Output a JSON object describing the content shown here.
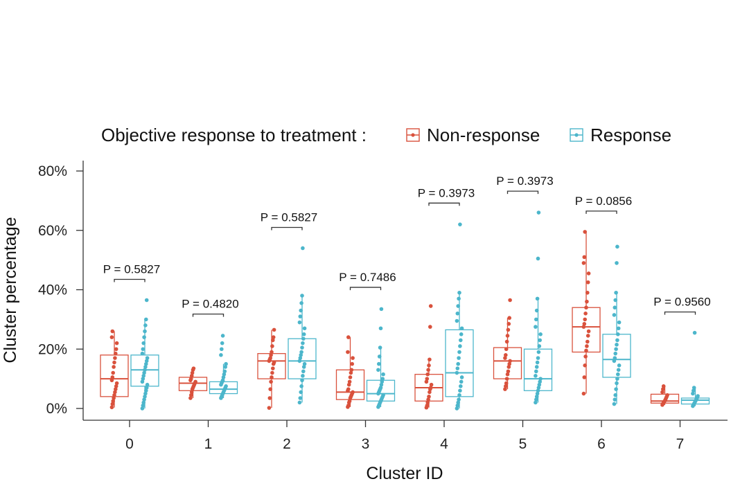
{
  "chart_data": {
    "type": "box",
    "title": "",
    "xlabel": "Cluster ID",
    "ylabel": "Cluster percentage",
    "ylim": [
      -4,
      84
    ],
    "yticks": [
      0,
      20,
      40,
      60,
      80
    ],
    "ytick_labels": [
      "0%",
      "20%",
      "40%",
      "60%",
      "80%"
    ],
    "categories": [
      "0",
      "1",
      "2",
      "3",
      "4",
      "5",
      "6",
      "7"
    ],
    "legend": {
      "title": "Objective response to treatment :",
      "position": "top",
      "entries": [
        {
          "name": "Non-response",
          "color": "#d9513c"
        },
        {
          "name": "Response",
          "color": "#4cb6cb"
        }
      ]
    },
    "series": [
      {
        "name": "Non-response",
        "color": "#d9513c",
        "boxes": [
          {
            "q1": 4.0,
            "median": 10.0,
            "q3": 18.0,
            "whisker_low": 0.3,
            "whisker_high": 26.0,
            "points": [
              0.4,
              1.5,
              2.5,
              3.5,
              4.5,
              5.5,
              6.5,
              7.5,
              8.5,
              9.5,
              10.5,
              12.0,
              14.0,
              15.5,
              17.0,
              18.5,
              20.0,
              22.0,
              24.0,
              26.0
            ]
          },
          {
            "q1": 6.0,
            "median": 8.5,
            "q3": 10.5,
            "whisker_low": 3.5,
            "whisker_high": 13.5,
            "points": [
              3.5,
              4.5,
              5.5,
              6.5,
              7.0,
              7.5,
              8.0,
              8.5,
              9.0,
              9.5,
              10.0,
              11.0,
              12.0,
              13.0,
              13.5
            ]
          },
          {
            "q1": 10.0,
            "median": 16.0,
            "q3": 18.5,
            "whisker_low": 0.2,
            "whisker_high": 26.5,
            "points": [
              0.2,
              3.5,
              6.5,
              9.0,
              10.5,
              12.0,
              13.5,
              15.0,
              15.5,
              16.0,
              16.5,
              17.0,
              18.0,
              19.0,
              21.0,
              23.0,
              24.0,
              26.5
            ]
          },
          {
            "q1": 3.0,
            "median": 5.5,
            "q3": 13.0,
            "whisker_low": 0.5,
            "whisker_high": 24.0,
            "points": [
              0.5,
              1.0,
              2.0,
              2.5,
              3.5,
              4.0,
              4.5,
              5.0,
              5.5,
              6.0,
              6.5,
              8.0,
              9.0,
              10.5,
              12.0,
              13.0,
              15.0,
              17.0,
              19.0,
              24.0
            ]
          },
          {
            "q1": 2.5,
            "median": 7.0,
            "q3": 11.5,
            "whisker_low": 0.3,
            "whisker_high": 16.5,
            "points": [
              0.3,
              1.0,
              2.0,
              3.0,
              4.0,
              5.5,
              6.5,
              7.0,
              8.0,
              9.0,
              10.0,
              11.5,
              13.0,
              14.5,
              16.5,
              27.5,
              34.5
            ]
          },
          {
            "q1": 10.0,
            "median": 16.0,
            "q3": 20.5,
            "whisker_low": 6.5,
            "whisker_high": 30.5,
            "points": [
              6.5,
              7.5,
              8.5,
              10.0,
              11.5,
              12.5,
              14.0,
              15.0,
              16.0,
              17.0,
              18.0,
              20.0,
              22.5,
              24.5,
              26.5,
              28.5,
              30.5,
              36.5
            ]
          },
          {
            "q1": 19.0,
            "median": 27.5,
            "q3": 34.0,
            "whisker_low": 5.0,
            "whisker_high": 59.5,
            "points": [
              5.0,
              10.5,
              14.5,
              17.5,
              19.5,
              21.0,
              22.5,
              24.5,
              26.0,
              27.5,
              28.5,
              30.0,
              32.0,
              34.0,
              36.0,
              39.0,
              42.5,
              45.5,
              49.0,
              51.0,
              59.5
            ]
          },
          {
            "q1": 1.8,
            "median": 2.5,
            "q3": 4.8,
            "whisker_low": 1.2,
            "whisker_high": 7.5,
            "points": [
              1.2,
              1.6,
              2.0,
              2.3,
              2.6,
              3.0,
              3.5,
              4.0,
              4.5,
              5.5,
              6.5,
              7.5
            ]
          }
        ]
      },
      {
        "name": "Response",
        "color": "#4cb6cb",
        "boxes": [
          {
            "q1": 7.5,
            "median": 13.0,
            "q3": 18.0,
            "whisker_low": 0.0,
            "whisker_high": 30.0,
            "points": [
              0.0,
              1.0,
              2.0,
              3.0,
              4.0,
              5.0,
              6.0,
              7.0,
              8.0,
              9.0,
              10.0,
              11.0,
              12.0,
              13.0,
              14.0,
              15.0,
              16.0,
              17.0,
              18.5,
              20.0,
              22.0,
              24.0,
              26.0,
              28.0,
              30.0,
              36.5
            ]
          },
          {
            "q1": 5.0,
            "median": 6.5,
            "q3": 9.0,
            "whisker_low": 3.5,
            "whisker_high": 15.0,
            "points": [
              3.5,
              4.0,
              4.5,
              5.0,
              5.5,
              6.0,
              6.5,
              7.0,
              7.5,
              8.0,
              8.5,
              9.0,
              9.5,
              10.5,
              11.5,
              12.5,
              14.0,
              15.0,
              18.0,
              20.0,
              22.0,
              24.5
            ]
          },
          {
            "q1": 10.0,
            "median": 16.0,
            "q3": 23.5,
            "whisker_low": 2.0,
            "whisker_high": 38.0,
            "points": [
              2.0,
              3.5,
              5.5,
              7.5,
              9.5,
              11.0,
              12.5,
              14.0,
              15.0,
              16.0,
              17.0,
              18.0,
              19.0,
              20.5,
              22.0,
              23.5,
              25.0,
              27.0,
              29.0,
              31.0,
              33.0,
              35.5,
              38.0,
              54.0
            ]
          },
          {
            "q1": 2.5,
            "median": 5.0,
            "q3": 9.5,
            "whisker_low": 0.5,
            "whisker_high": 20.5,
            "points": [
              0.5,
              1.0,
              1.5,
              2.0,
              2.5,
              3.0,
              3.5,
              4.0,
              4.5,
              5.0,
              5.5,
              6.0,
              6.5,
              7.0,
              8.0,
              9.0,
              10.0,
              11.5,
              13.0,
              15.0,
              17.5,
              20.5,
              27.0,
              33.5
            ]
          },
          {
            "q1": 4.0,
            "median": 12.0,
            "q3": 26.5,
            "whisker_low": 0.0,
            "whisker_high": 39.0,
            "points": [
              0.0,
              1.0,
              2.0,
              3.0,
              4.5,
              6.0,
              7.5,
              9.0,
              10.5,
              12.0,
              13.5,
              15.0,
              17.0,
              19.0,
              21.0,
              23.0,
              25.0,
              27.0,
              29.5,
              32.0,
              34.5,
              37.0,
              39.0,
              62.0
            ]
          },
          {
            "q1": 6.0,
            "median": 10.0,
            "q3": 20.0,
            "whisker_low": 2.0,
            "whisker_high": 37.0,
            "points": [
              2.0,
              3.0,
              4.0,
              5.0,
              6.0,
              7.0,
              8.0,
              9.0,
              10.0,
              11.0,
              12.5,
              14.0,
              15.5,
              17.0,
              19.0,
              21.0,
              23.0,
              25.0,
              27.5,
              30.0,
              33.0,
              37.0,
              50.5,
              66.0
            ]
          },
          {
            "q1": 10.5,
            "median": 16.5,
            "q3": 25.0,
            "whisker_low": 1.5,
            "whisker_high": 39.0,
            "points": [
              1.5,
              3.0,
              4.5,
              6.5,
              8.5,
              10.0,
              11.5,
              13.0,
              14.5,
              16.0,
              17.0,
              18.5,
              20.0,
              21.5,
              23.0,
              25.0,
              27.0,
              29.0,
              31.5,
              34.0,
              36.5,
              39.0,
              49.0,
              54.5
            ]
          },
          {
            "q1": 1.5,
            "median": 2.8,
            "q3": 3.5,
            "whisker_low": 0.8,
            "whisker_high": 7.0,
            "points": [
              0.8,
              1.2,
              1.6,
              2.0,
              2.4,
              2.8,
              3.2,
              3.6,
              4.2,
              5.0,
              6.0,
              7.0,
              25.5
            ]
          }
        ]
      }
    ],
    "annotations": [
      {
        "cluster": "0",
        "text": "P = 0.5827",
        "y": 43.5
      },
      {
        "cluster": "1",
        "text": "P = 0.4820",
        "y": 31.8
      },
      {
        "cluster": "2",
        "text": "P = 0.5827",
        "y": 61.0
      },
      {
        "cluster": "3",
        "text": "P = 0.7486",
        "y": 40.8
      },
      {
        "cluster": "4",
        "text": "P = 0.3973",
        "y": 69.2
      },
      {
        "cluster": "5",
        "text": "P = 0.3973",
        "y": 73.2
      },
      {
        "cluster": "6",
        "text": "P = 0.0856",
        "y": 66.5
      },
      {
        "cluster": "7",
        "text": "P = 0.9560",
        "y": 32.5
      }
    ]
  }
}
